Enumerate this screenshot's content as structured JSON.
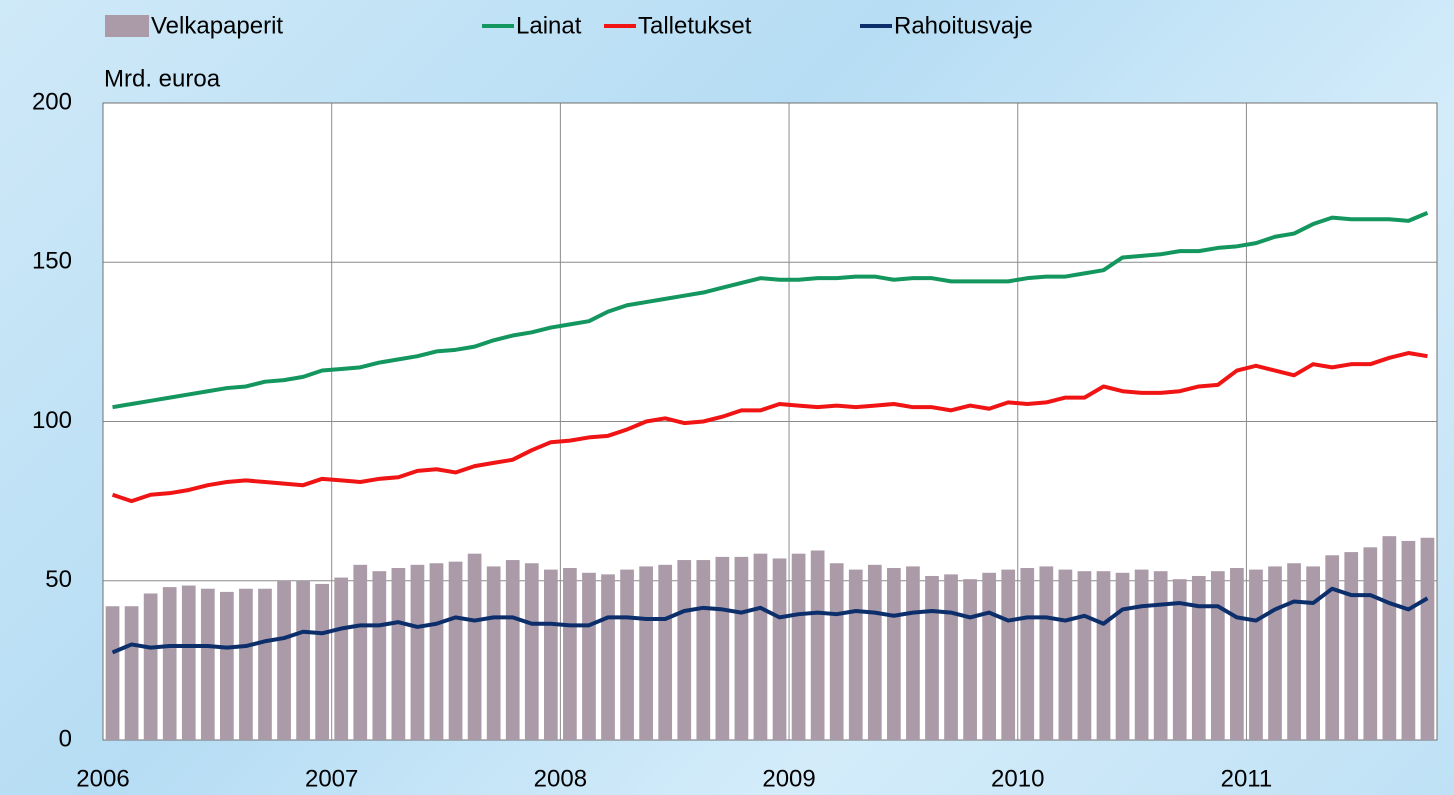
{
  "chart_data": {
    "type": "bar_line",
    "y_label": "Mrd. euroa",
    "categories": [
      "2006",
      null,
      null,
      null,
      null,
      null,
      null,
      null,
      null,
      null,
      null,
      null,
      "2007",
      null,
      null,
      null,
      null,
      null,
      null,
      null,
      null,
      null,
      null,
      null,
      "2008",
      null,
      null,
      null,
      null,
      null,
      null,
      null,
      null,
      null,
      null,
      null,
      "2009",
      null,
      null,
      null,
      null,
      null,
      null,
      null,
      null,
      null,
      null,
      null,
      "2010",
      null,
      null,
      null,
      null,
      null,
      null,
      null,
      null,
      null,
      null,
      null,
      "2011",
      null,
      null,
      null,
      null,
      null,
      null,
      null,
      null,
      null
    ],
    "ylim": [
      0,
      200
    ],
    "yticks": [
      0,
      50,
      100,
      150,
      200
    ],
    "grid": true,
    "series": [
      {
        "name": "Velkapaperit",
        "kind": "bar",
        "color": "#ab9ba9",
        "values": [
          42,
          42,
          46,
          48,
          48.5,
          47.5,
          46.5,
          47.5,
          47.5,
          50,
          50,
          49,
          51,
          55,
          53,
          54,
          55,
          55.5,
          56,
          58.5,
          54.5,
          56.5,
          55.5,
          53.5,
          54,
          52.5,
          52,
          53.5,
          54.5,
          55,
          56.5,
          56.5,
          57.5,
          57.5,
          58.5,
          57,
          58.5,
          59.5,
          55.5,
          53.5,
          55,
          54,
          54.5,
          51.5,
          52,
          50.5,
          52.5,
          53.5,
          54,
          54.5,
          53.5,
          53,
          53,
          52.5,
          53.5,
          53,
          50.5,
          51.5,
          53,
          54,
          53.5,
          54.5,
          55.5,
          54.5,
          58,
          59,
          60.5,
          64,
          62.5,
          63.5
        ]
      },
      {
        "name": "Lainat",
        "kind": "line",
        "color": "#14965f",
        "values": [
          104.5,
          105.5,
          106.5,
          107.5,
          108.5,
          109.5,
          110.5,
          111,
          112.5,
          113,
          114,
          116,
          116.5,
          117,
          118.5,
          119.5,
          120.5,
          122,
          122.5,
          123.5,
          125.5,
          127,
          128,
          129.5,
          130.5,
          131.5,
          134.5,
          136.5,
          137.5,
          138.5,
          139.5,
          140.5,
          142,
          143.5,
          145,
          144.5,
          144.5,
          145,
          145,
          145.5,
          145.5,
          144.5,
          145,
          145,
          144,
          144,
          144,
          144,
          145,
          145.5,
          145.5,
          146.5,
          147.5,
          151.5,
          152,
          152.5,
          153.5,
          153.5,
          154.5,
          155,
          156,
          158,
          159,
          162,
          164,
          163.5,
          163.5,
          163.5,
          163,
          165.5
        ]
      },
      {
        "name": "Talletukset",
        "kind": "line",
        "color": "#f01414",
        "values": [
          77,
          75,
          77,
          77.5,
          78.5,
          80,
          81,
          81.5,
          81,
          80.5,
          80,
          82,
          81.5,
          81,
          82,
          82.5,
          84.5,
          85,
          84,
          86,
          87,
          88,
          91,
          93.5,
          94,
          95,
          95.5,
          97.5,
          100,
          101,
          99.5,
          100,
          101.5,
          103.5,
          103.5,
          105.5,
          105,
          104.5,
          105,
          104.5,
          105,
          105.5,
          104.5,
          104.5,
          103.5,
          105,
          104,
          106,
          105.5,
          106,
          107.5,
          107.5,
          111,
          109.5,
          109,
          109,
          109.5,
          111,
          111.5,
          116,
          117.5,
          116,
          114.5,
          118,
          117,
          118,
          118,
          120,
          121.5,
          120.5
        ]
      },
      {
        "name": "Rahoitusvaje",
        "kind": "line",
        "color": "#0c2f6b",
        "values": [
          27.5,
          30,
          29,
          29.5,
          29.5,
          29.5,
          29,
          29.5,
          31,
          32,
          34,
          33.5,
          35,
          36,
          36,
          37,
          35.5,
          36.5,
          38.5,
          37.5,
          38.5,
          38.5,
          36.5,
          36.5,
          36,
          36,
          38.5,
          38.5,
          38,
          38,
          40.5,
          41.5,
          41,
          40,
          41.5,
          38.5,
          39.5,
          40,
          39.5,
          40.5,
          40,
          39,
          40,
          40.5,
          40,
          38.5,
          40,
          37.5,
          38.5,
          38.5,
          37.5,
          39,
          36.5,
          41,
          42,
          42.5,
          43,
          42,
          42,
          38.5,
          37.5,
          41,
          43.5,
          43,
          47.5,
          45.5,
          45.5,
          43,
          41,
          44.5
        ]
      }
    ]
  }
}
